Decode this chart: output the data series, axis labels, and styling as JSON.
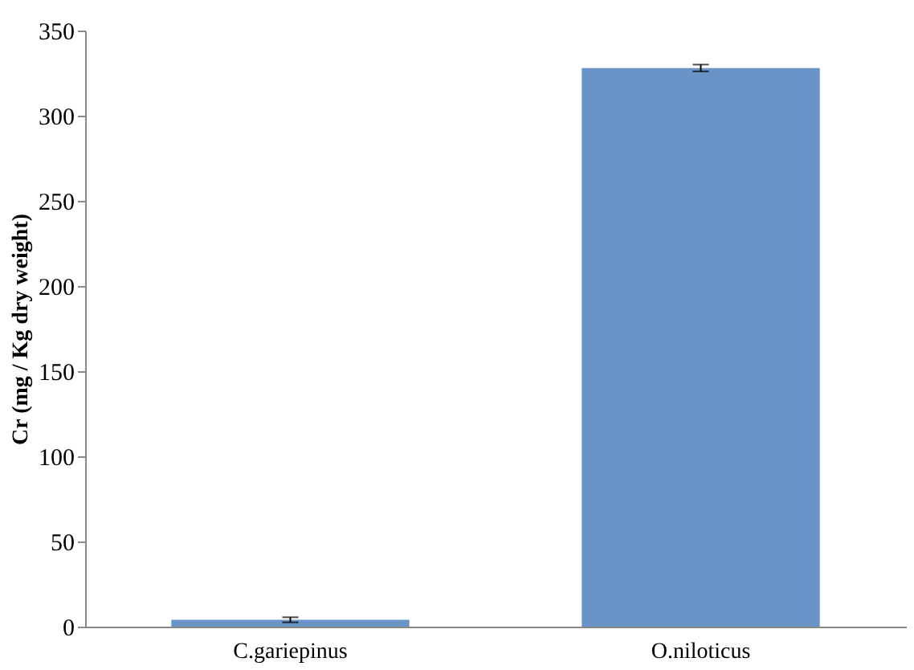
{
  "chart_data": {
    "type": "bar",
    "ylabel": "Cr (mg / Kg dry weight)",
    "categories": [
      "C.gariepinus",
      "O.niloticus"
    ],
    "values": [
      4,
      328
    ],
    "errors": [
      1.5,
      2
    ],
    "color": "#6a93c8",
    "ylim": [
      0,
      350
    ],
    "yticks": [
      0,
      50,
      100,
      150,
      200,
      250,
      300,
      350
    ],
    "grid": false
  }
}
